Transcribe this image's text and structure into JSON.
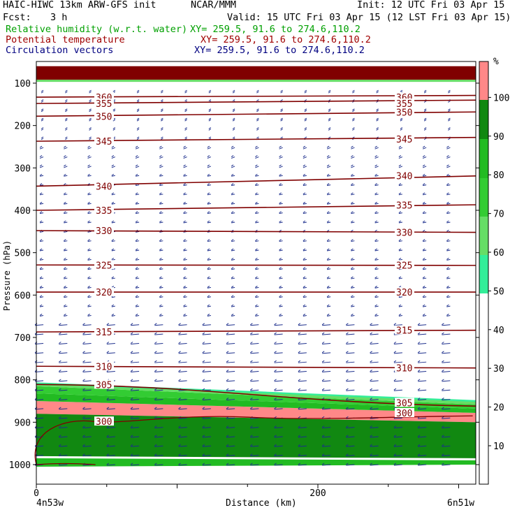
{
  "header": {
    "model": "HAIC-HIWC 13km ARW-GFS init",
    "org": "NCAR/MMM",
    "init": "Init: 12 UTC Fri 03 Apr 15",
    "fcst_label": "Fcst:",
    "fcst_value": "3 h",
    "valid": "Valid: 15 UTC Fri 03 Apr 15 (12 LST Fri 03 Apr 15)",
    "fields": [
      {
        "name": "Relative humidity (w.r.t. water)",
        "xy": "XY= 259.5, 91.6 to 274.6,110.2",
        "color": "#00a000"
      },
      {
        "name": "Potential temperature",
        "xy": "XY= 259.5, 91.6 to 274.6,110.2",
        "color": "#a00000"
      },
      {
        "name": "Circulation vectors",
        "xy": "XY= 259.5, 91.6 to 274.6,110.2",
        "color": "#000080"
      }
    ]
  },
  "colorbar": {
    "unit": "%",
    "labels": [
      "10",
      "20",
      "30",
      "40",
      "50",
      "60",
      "70",
      "80",
      "90",
      "100"
    ],
    "colors": {
      "0-50": "#ffffff",
      "50-60": "#33ee99",
      "60-70": "#66dd66",
      "70-80": "#33cc33",
      "80-90": "#22bb22",
      "90-100": "#118811",
      "100+": "#ff8888",
      "110+": "#800000"
    }
  },
  "chart_data": {
    "type": "cross-section",
    "ylabel": "Pressure (hPa)",
    "xlabel": "Distance (km)",
    "yticks": [
      100,
      200,
      300,
      400,
      500,
      600,
      700,
      800,
      900,
      1000
    ],
    "xticks": [
      0,
      200
    ],
    "xlim": [
      0,
      310
    ],
    "ylim": [
      1050,
      50
    ],
    "left_label": "4n53w",
    "right_label": "6n51w",
    "theta_contours": [
      {
        "value": 360,
        "p_left": 133,
        "p_right": 129
      },
      {
        "value": 355,
        "p_left": 148,
        "p_right": 140
      },
      {
        "value": 350,
        "p_left": 178,
        "p_right": 168
      },
      {
        "value": 345,
        "p_left": 237,
        "p_right": 228
      },
      {
        "value": 340,
        "p_left": 343,
        "p_right": 319
      },
      {
        "value": 335,
        "p_left": 400,
        "p_right": 387
      },
      {
        "value": 330,
        "p_left": 448,
        "p_right": 452
      },
      {
        "value": 325,
        "p_left": 529,
        "p_right": 530
      },
      {
        "value": 320,
        "p_left": 593,
        "p_right": 593
      },
      {
        "value": 315,
        "p_left": 687,
        "p_right": 683
      },
      {
        "value": 310,
        "p_left": 768,
        "p_right": 772
      },
      {
        "value": 305,
        "p_left": 811,
        "p_right": 862
      },
      {
        "value": 300,
        "p_left": 1000,
        "p_right": 885
      }
    ],
    "labels_left": [
      {
        "text": "360",
        "p": 133
      },
      {
        "text": "355",
        "p": 148
      },
      {
        "text": "350",
        "p": 178
      },
      {
        "text": "345",
        "p": 237
      },
      {
        "text": "340",
        "p": 343
      },
      {
        "text": "335",
        "p": 400
      },
      {
        "text": "330",
        "p": 448
      },
      {
        "text": "325",
        "p": 529
      },
      {
        "text": "320",
        "p": 593
      },
      {
        "text": "315",
        "p": 687
      },
      {
        "text": "310",
        "p": 768
      },
      {
        "text": "305",
        "p": 811
      },
      {
        "text": "300",
        "p": 898
      }
    ],
    "labels_right": [
      {
        "text": "360",
        "p": 133
      },
      {
        "text": "355",
        "p": 148
      },
      {
        "text": "350",
        "p": 168
      },
      {
        "text": "345",
        "p": 232
      },
      {
        "text": "340",
        "p": 318
      },
      {
        "text": "335",
        "p": 388
      },
      {
        "text": "330",
        "p": 452
      },
      {
        "text": "325",
        "p": 529
      },
      {
        "text": "320",
        "p": 593
      },
      {
        "text": "315",
        "p": 683
      },
      {
        "text": "310",
        "p": 772
      },
      {
        "text": "305",
        "p": 854
      },
      {
        "text": "300",
        "p": 878
      }
    ],
    "rh_bands": [
      {
        "range": "100+",
        "p_top_left": 850,
        "p_top_right": 878,
        "p_bot_left": 880,
        "p_bot_right": 900
      },
      {
        "range": "90-100",
        "p_top_left": 880,
        "p_top_right": 900,
        "p_bot_left": 980,
        "p_bot_right": 985
      },
      {
        "range": "80-90",
        "p_top_left": 832,
        "p_top_right": 868,
        "p_bot_left": 850,
        "p_bot_right": 878
      },
      {
        "range": "70-80",
        "p_top_left": 815,
        "p_top_right": 858,
        "p_bot_left": 832,
        "p_bot_right": 868
      },
      {
        "range": "60-70",
        "p_top_left": 808,
        "p_top_right": 850,
        "p_bot_left": 815,
        "p_bot_right": 858
      },
      {
        "range": "110+",
        "p_top_left": 60,
        "p_top_right": 60,
        "p_bot_left": 92,
        "p_bot_right": 92
      }
    ]
  }
}
